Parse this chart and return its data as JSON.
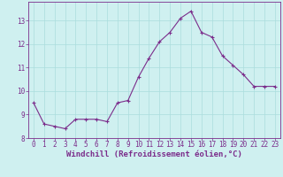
{
  "x": [
    0,
    1,
    2,
    3,
    4,
    5,
    6,
    7,
    8,
    9,
    10,
    11,
    12,
    13,
    14,
    15,
    16,
    17,
    18,
    19,
    20,
    21,
    22,
    23
  ],
  "y": [
    9.5,
    8.6,
    8.5,
    8.4,
    8.8,
    8.8,
    8.8,
    8.7,
    9.5,
    9.6,
    10.6,
    11.4,
    12.1,
    12.5,
    13.1,
    13.4,
    12.5,
    12.3,
    11.5,
    11.1,
    10.7,
    10.2,
    10.2,
    10.2
  ],
  "line_color": "#7B2D8B",
  "marker": "+",
  "marker_size": 3.5,
  "bg_color": "#cff0f0",
  "grid_color": "#aadddd",
  "xlabel": "Windchill (Refroidissement éolien,°C)",
  "xlabel_color": "#7B2D8B",
  "xlabel_fontsize": 6.5,
  "tick_color": "#7B2D8B",
  "tick_fontsize": 5.5,
  "ylim": [
    8.0,
    13.8
  ],
  "yticks": [
    8,
    9,
    10,
    11,
    12,
    13
  ],
  "xlim": [
    -0.5,
    23.5
  ],
  "xticks": [
    0,
    1,
    2,
    3,
    4,
    5,
    6,
    7,
    8,
    9,
    10,
    11,
    12,
    13,
    14,
    15,
    16,
    17,
    18,
    19,
    20,
    21,
    22,
    23
  ]
}
